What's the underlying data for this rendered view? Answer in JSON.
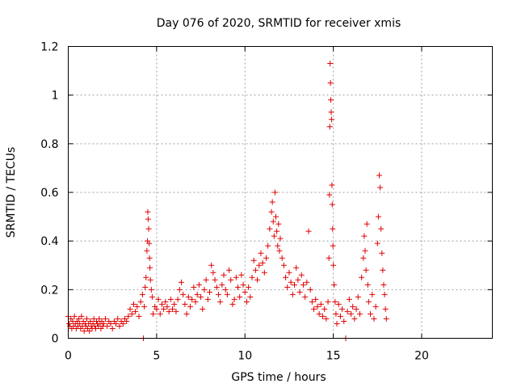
{
  "chart_data": {
    "type": "scatter",
    "title": "Day 076 of 2020, SRMTID for receiver xmis",
    "xlabel": "GPS time / hours",
    "ylabel": "SRMTID / TECUs",
    "xlim": [
      0,
      24
    ],
    "ylim": [
      0,
      1.2
    ],
    "xticks": [
      0,
      5,
      10,
      15,
      20
    ],
    "xtick_labels": [
      "0",
      "5",
      "10",
      "15",
      "20"
    ],
    "yticks": [
      0,
      0.2,
      0.4,
      0.6,
      0.8,
      1,
      1.2
    ],
    "ytick_labels": [
      "0",
      "0.2",
      "0.4",
      "0.6",
      "0.8",
      "1",
      "1.2"
    ],
    "grid": true,
    "marker": "+",
    "color": "#e00000",
    "series": [
      {
        "name": "SRMTID",
        "points": [
          [
            0.0,
            0.09
          ],
          [
            0.05,
            0.06
          ],
          [
            0.1,
            0.05
          ],
          [
            0.15,
            0.08
          ],
          [
            0.2,
            0.04
          ],
          [
            0.25,
            0.07
          ],
          [
            0.3,
            0.05
          ],
          [
            0.35,
            0.09
          ],
          [
            0.4,
            0.06
          ],
          [
            0.45,
            0.04
          ],
          [
            0.5,
            0.07
          ],
          [
            0.55,
            0.05
          ],
          [
            0.6,
            0.08
          ],
          [
            0.65,
            0.06
          ],
          [
            0.7,
            0.04
          ],
          [
            0.75,
            0.09
          ],
          [
            0.8,
            0.05
          ],
          [
            0.85,
            0.07
          ],
          [
            0.9,
            0.03
          ],
          [
            0.95,
            0.06
          ],
          [
            1.0,
            0.05
          ],
          [
            1.05,
            0.08
          ],
          [
            1.1,
            0.04
          ],
          [
            1.15,
            0.06
          ],
          [
            1.2,
            0.03
          ],
          [
            1.25,
            0.07
          ],
          [
            1.3,
            0.05
          ],
          [
            1.35,
            0.04
          ],
          [
            1.4,
            0.06
          ],
          [
            1.45,
            0.08
          ],
          [
            1.5,
            0.05
          ],
          [
            1.55,
            0.04
          ],
          [
            1.6,
            0.07
          ],
          [
            1.65,
            0.06
          ],
          [
            1.7,
            0.05
          ],
          [
            1.75,
            0.08
          ],
          [
            1.8,
            0.06
          ],
          [
            1.85,
            0.04
          ],
          [
            1.9,
            0.07
          ],
          [
            1.95,
            0.05
          ],
          [
            2.0,
            0.06
          ],
          [
            2.1,
            0.08
          ],
          [
            2.2,
            0.05
          ],
          [
            2.3,
            0.07
          ],
          [
            2.4,
            0.06
          ],
          [
            2.5,
            0.04
          ],
          [
            2.6,
            0.07
          ],
          [
            2.7,
            0.06
          ],
          [
            2.8,
            0.08
          ],
          [
            2.9,
            0.05
          ],
          [
            3.0,
            0.07
          ],
          [
            3.1,
            0.06
          ],
          [
            3.2,
            0.08
          ],
          [
            3.3,
            0.07
          ],
          [
            3.4,
            0.09
          ],
          [
            3.5,
            0.12
          ],
          [
            3.6,
            0.1
          ],
          [
            3.7,
            0.14
          ],
          [
            3.8,
            0.11
          ],
          [
            3.9,
            0.13
          ],
          [
            4.0,
            0.09
          ],
          [
            4.1,
            0.15
          ],
          [
            4.2,
            0.18
          ],
          [
            4.25,
            0.0
          ],
          [
            4.3,
            0.13
          ],
          [
            4.35,
            0.21
          ],
          [
            4.4,
            0.25
          ],
          [
            4.45,
            0.36
          ],
          [
            4.48,
            0.4
          ],
          [
            4.5,
            0.52
          ],
          [
            4.52,
            0.49
          ],
          [
            4.55,
            0.45
          ],
          [
            4.58,
            0.39
          ],
          [
            4.6,
            0.33
          ],
          [
            4.62,
            0.29
          ],
          [
            4.65,
            0.24
          ],
          [
            4.7,
            0.2
          ],
          [
            4.75,
            0.17
          ],
          [
            4.8,
            0.1
          ],
          [
            4.9,
            0.13
          ],
          [
            5.0,
            0.12
          ],
          [
            5.1,
            0.16
          ],
          [
            5.2,
            0.1
          ],
          [
            5.3,
            0.14
          ],
          [
            5.4,
            0.12
          ],
          [
            5.5,
            0.15
          ],
          [
            5.6,
            0.13
          ],
          [
            5.7,
            0.11
          ],
          [
            5.8,
            0.16
          ],
          [
            5.9,
            0.12
          ],
          [
            6.0,
            0.14
          ],
          [
            6.1,
            0.11
          ],
          [
            6.2,
            0.16
          ],
          [
            6.3,
            0.2
          ],
          [
            6.4,
            0.23
          ],
          [
            6.5,
            0.18
          ],
          [
            6.6,
            0.14
          ],
          [
            6.7,
            0.1
          ],
          [
            6.8,
            0.17
          ],
          [
            6.9,
            0.13
          ],
          [
            7.0,
            0.16
          ],
          [
            7.1,
            0.21
          ],
          [
            7.2,
            0.15
          ],
          [
            7.3,
            0.18
          ],
          [
            7.4,
            0.22
          ],
          [
            7.5,
            0.17
          ],
          [
            7.6,
            0.12
          ],
          [
            7.7,
            0.2
          ],
          [
            7.8,
            0.24
          ],
          [
            7.9,
            0.16
          ],
          [
            8.0,
            0.19
          ],
          [
            8.1,
            0.3
          ],
          [
            8.2,
            0.27
          ],
          [
            8.3,
            0.24
          ],
          [
            8.4,
            0.21
          ],
          [
            8.5,
            0.18
          ],
          [
            8.6,
            0.15
          ],
          [
            8.7,
            0.22
          ],
          [
            8.8,
            0.26
          ],
          [
            8.9,
            0.2
          ],
          [
            9.0,
            0.18
          ],
          [
            9.1,
            0.28
          ],
          [
            9.2,
            0.24
          ],
          [
            9.3,
            0.14
          ],
          [
            9.4,
            0.16
          ],
          [
            9.5,
            0.25
          ],
          [
            9.6,
            0.21
          ],
          [
            9.7,
            0.17
          ],
          [
            9.8,
            0.26
          ],
          [
            9.9,
            0.22
          ],
          [
            10.0,
            0.19
          ],
          [
            10.1,
            0.15
          ],
          [
            10.2,
            0.21
          ],
          [
            10.3,
            0.17
          ],
          [
            10.4,
            0.25
          ],
          [
            10.5,
            0.32
          ],
          [
            10.6,
            0.28
          ],
          [
            10.7,
            0.24
          ],
          [
            10.8,
            0.3
          ],
          [
            10.9,
            0.35
          ],
          [
            11.0,
            0.31
          ],
          [
            11.1,
            0.27
          ],
          [
            11.2,
            0.33
          ],
          [
            11.3,
            0.38
          ],
          [
            11.4,
            0.45
          ],
          [
            11.5,
            0.52
          ],
          [
            11.55,
            0.56
          ],
          [
            11.6,
            0.48
          ],
          [
            11.65,
            0.42
          ],
          [
            11.7,
            0.6
          ],
          [
            11.75,
            0.5
          ],
          [
            11.8,
            0.44
          ],
          [
            11.85,
            0.38
          ],
          [
            11.9,
            0.47
          ],
          [
            11.95,
            0.36
          ],
          [
            12.0,
            0.41
          ],
          [
            12.1,
            0.33
          ],
          [
            12.2,
            0.3
          ],
          [
            12.3,
            0.25
          ],
          [
            12.4,
            0.21
          ],
          [
            12.5,
            0.27
          ],
          [
            12.6,
            0.23
          ],
          [
            12.7,
            0.18
          ],
          [
            12.8,
            0.22
          ],
          [
            12.9,
            0.29
          ],
          [
            13.0,
            0.24
          ],
          [
            13.1,
            0.19
          ],
          [
            13.2,
            0.26
          ],
          [
            13.3,
            0.22
          ],
          [
            13.4,
            0.17
          ],
          [
            13.5,
            0.23
          ],
          [
            13.6,
            0.44
          ],
          [
            13.7,
            0.2
          ],
          [
            13.8,
            0.15
          ],
          [
            13.9,
            0.12
          ],
          [
            14.0,
            0.16
          ],
          [
            14.1,
            0.13
          ],
          [
            14.2,
            0.1
          ],
          [
            14.3,
            0.14
          ],
          [
            14.4,
            0.09
          ],
          [
            14.5,
            0.12
          ],
          [
            14.6,
            0.08
          ],
          [
            14.7,
            0.15
          ],
          [
            14.75,
            0.33
          ],
          [
            14.78,
            0.59
          ],
          [
            14.8,
            0.87
          ],
          [
            14.82,
            1.13
          ],
          [
            14.84,
            1.05
          ],
          [
            14.86,
            0.98
          ],
          [
            14.88,
            0.93
          ],
          [
            14.9,
            0.9
          ],
          [
            14.92,
            0.63
          ],
          [
            14.94,
            0.55
          ],
          [
            14.96,
            0.45
          ],
          [
            14.98,
            0.38
          ],
          [
            15.0,
            0.3
          ],
          [
            15.05,
            0.22
          ],
          [
            15.1,
            0.15
          ],
          [
            15.15,
            0.1
          ],
          [
            15.2,
            0.06
          ],
          [
            15.3,
            0.14
          ],
          [
            15.4,
            0.09
          ],
          [
            15.5,
            0.12
          ],
          [
            15.6,
            0.07
          ],
          [
            15.7,
            0.0
          ],
          [
            15.8,
            0.11
          ],
          [
            15.9,
            0.16
          ],
          [
            16.0,
            0.1
          ],
          [
            16.1,
            0.13
          ],
          [
            16.2,
            0.08
          ],
          [
            16.3,
            0.12
          ],
          [
            16.4,
            0.17
          ],
          [
            16.5,
            0.1
          ],
          [
            16.6,
            0.25
          ],
          [
            16.7,
            0.33
          ],
          [
            16.75,
            0.42
          ],
          [
            16.8,
            0.36
          ],
          [
            16.85,
            0.28
          ],
          [
            16.9,
            0.47
          ],
          [
            16.95,
            0.22
          ],
          [
            17.0,
            0.15
          ],
          [
            17.1,
            0.1
          ],
          [
            17.2,
            0.18
          ],
          [
            17.3,
            0.08
          ],
          [
            17.4,
            0.13
          ],
          [
            17.5,
            0.39
          ],
          [
            17.55,
            0.5
          ],
          [
            17.6,
            0.67
          ],
          [
            17.65,
            0.62
          ],
          [
            17.7,
            0.45
          ],
          [
            17.75,
            0.35
          ],
          [
            17.8,
            0.28
          ],
          [
            17.85,
            0.22
          ],
          [
            17.9,
            0.18
          ],
          [
            17.95,
            0.12
          ],
          [
            18.0,
            0.08
          ]
        ]
      }
    ]
  }
}
